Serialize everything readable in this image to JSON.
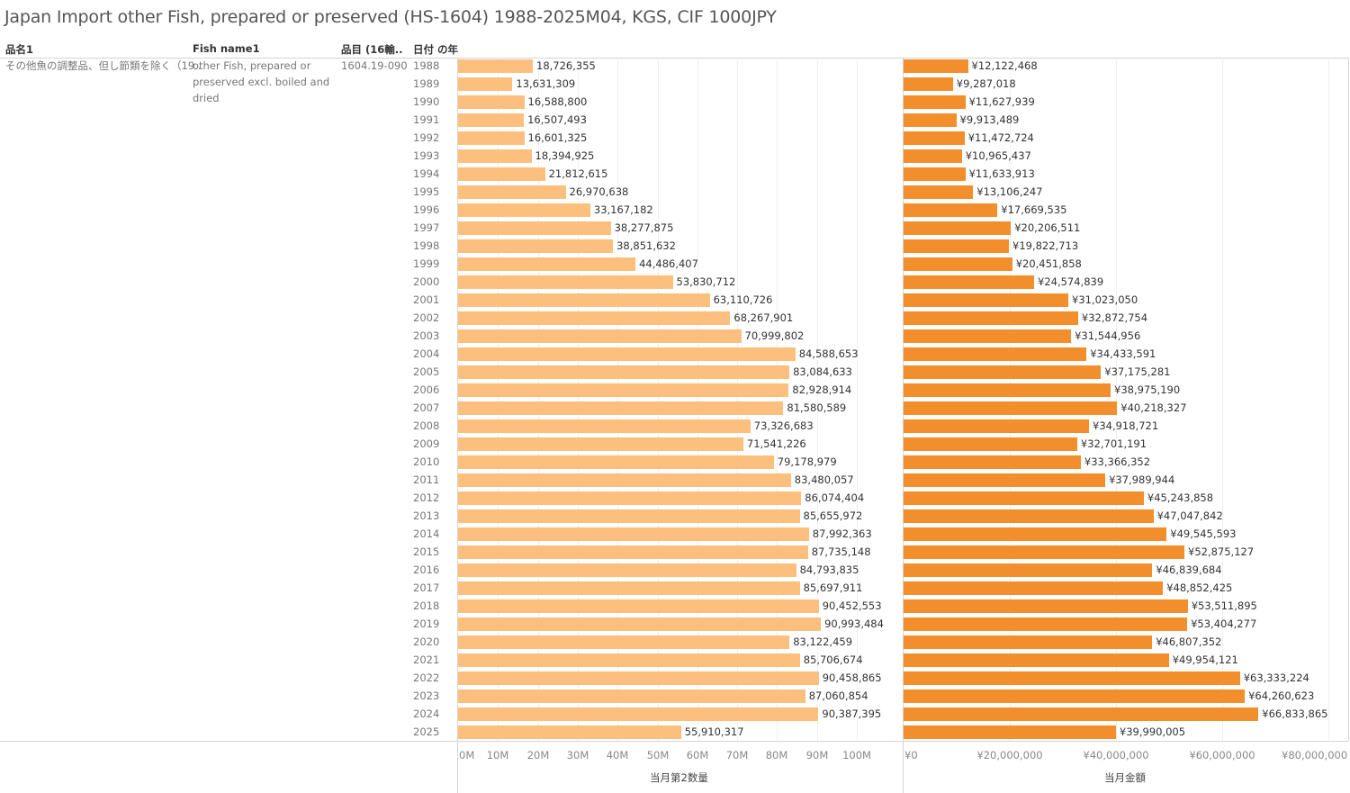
{
  "title": "Japan Import other Fish, prepared or preserved (HS-1604) 1988-2025M04, KGS, CIF 1000JPY",
  "headers": {
    "name_jp": "品名1",
    "fish_name": "Fish name1",
    "hs_code": "品目 (16輸..",
    "year": "日付 の年"
  },
  "row": {
    "name_jp": "その他魚の調整品、但し節類を除く（19..",
    "fish_name": "other Fish, prepared or preserved excl. boiled and dried",
    "hs_code": "1604.19-090"
  },
  "colors": {
    "quantity": "#FDBF7E",
    "value": "#F28E2B"
  },
  "chart_data": [
    {
      "type": "bar",
      "orientation": "horizontal",
      "xlabel": "当月第2数量",
      "xlim": [
        0,
        110000000
      ],
      "ticks": [
        "0M",
        "10M",
        "20M",
        "30M",
        "40M",
        "50M",
        "60M",
        "70M",
        "80M",
        "90M",
        "100M"
      ],
      "categories": [
        "1988",
        "1989",
        "1990",
        "1991",
        "1992",
        "1993",
        "1994",
        "1995",
        "1996",
        "1997",
        "1998",
        "1999",
        "2000",
        "2001",
        "2002",
        "2003",
        "2004",
        "2005",
        "2006",
        "2007",
        "2008",
        "2009",
        "2010",
        "2011",
        "2012",
        "2013",
        "2014",
        "2015",
        "2016",
        "2017",
        "2018",
        "2019",
        "2020",
        "2021",
        "2022",
        "2023",
        "2024",
        "2025"
      ],
      "values": [
        18726355,
        13631309,
        16588800,
        16507493,
        16601325,
        18394925,
        21812615,
        26970638,
        33167182,
        38277875,
        38851632,
        44486407,
        53830712,
        63110726,
        68267901,
        70999802,
        84588653,
        83084633,
        82928914,
        81580589,
        73326683,
        71541226,
        79178979,
        83480057,
        86074404,
        85655972,
        87992363,
        87735148,
        84793835,
        85697911,
        90452553,
        90993484,
        83122459,
        85706674,
        90458865,
        87060854,
        90387395,
        55910317
      ],
      "labels": [
        "18,726,355",
        "13,631,309",
        "16,588,800",
        "16,507,493",
        "16,601,325",
        "18,394,925",
        "21,812,615",
        "26,970,638",
        "33,167,182",
        "38,277,875",
        "38,851,632",
        "44,486,407",
        "53,830,712",
        "63,110,726",
        "68,267,901",
        "70,999,802",
        "84,588,653",
        "83,084,633",
        "82,928,914",
        "81,580,589",
        "73,326,683",
        "71,541,226",
        "79,178,979",
        "83,480,057",
        "86,074,404",
        "85,655,972",
        "87,992,363",
        "87,735,148",
        "84,793,835",
        "85,697,911",
        "90,452,553",
        "90,993,484",
        "83,122,459",
        "85,706,674",
        "90,458,865",
        "87,060,854",
        "90,387,395",
        "55,910,317"
      ]
    },
    {
      "type": "bar",
      "orientation": "horizontal",
      "xlabel": "当月金額",
      "xlim": [
        0,
        83000000
      ],
      "ticks": [
        "¥0",
        "¥20,000,000",
        "¥40,000,000",
        "¥60,000,000",
        "¥80,000,000"
      ],
      "categories": [
        "1988",
        "1989",
        "1990",
        "1991",
        "1992",
        "1993",
        "1994",
        "1995",
        "1996",
        "1997",
        "1998",
        "1999",
        "2000",
        "2001",
        "2002",
        "2003",
        "2004",
        "2005",
        "2006",
        "2007",
        "2008",
        "2009",
        "2010",
        "2011",
        "2012",
        "2013",
        "2014",
        "2015",
        "2016",
        "2017",
        "2018",
        "2019",
        "2020",
        "2021",
        "2022",
        "2023",
        "2024",
        "2025"
      ],
      "values": [
        12122468,
        9287018,
        11627939,
        9913489,
        11472724,
        10965437,
        11633913,
        13106247,
        17669535,
        20206511,
        19822713,
        20451858,
        24574839,
        31023050,
        32872754,
        31544956,
        34433591,
        37175281,
        38975190,
        40218327,
        34918721,
        32701191,
        33366352,
        37989944,
        45243858,
        47047842,
        49545593,
        52875127,
        46839684,
        48852425,
        53511895,
        53404277,
        46807352,
        49954121,
        63333224,
        64260623,
        66833865,
        39990005
      ],
      "labels": [
        "¥12,122,468",
        "¥9,287,018",
        "¥11,627,939",
        "¥9,913,489",
        "¥11,472,724",
        "¥10,965,437",
        "¥11,633,913",
        "¥13,106,247",
        "¥17,669,535",
        "¥20,206,511",
        "¥19,822,713",
        "¥20,451,858",
        "¥24,574,839",
        "¥31,023,050",
        "¥32,872,754",
        "¥31,544,956",
        "¥34,433,591",
        "¥37,175,281",
        "¥38,975,190",
        "¥40,218,327",
        "¥34,918,721",
        "¥32,701,191",
        "¥33,366,352",
        "¥37,989,944",
        "¥45,243,858",
        "¥47,047,842",
        "¥49,545,593",
        "¥52,875,127",
        "¥46,839,684",
        "¥48,852,425",
        "¥53,511,895",
        "¥53,404,277",
        "¥46,807,352",
        "¥49,954,121",
        "¥63,333,224",
        "¥64,260,623",
        "¥66,833,865",
        "¥39,990,005"
      ]
    }
  ]
}
